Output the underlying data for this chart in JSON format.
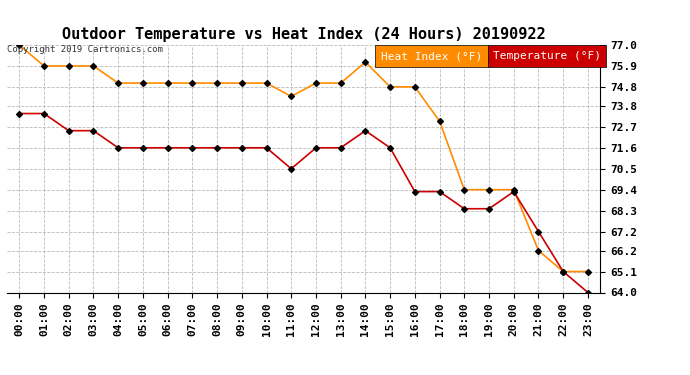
{
  "title": "Outdoor Temperature vs Heat Index (24 Hours) 20190922",
  "copyright": "Copyright 2019 Cartronics.com",
  "background_color": "#ffffff",
  "plot_bg_color": "#ffffff",
  "grid_color": "#aaaaaa",
  "hours": [
    "00:00",
    "01:00",
    "02:00",
    "03:00",
    "04:00",
    "05:00",
    "06:00",
    "07:00",
    "08:00",
    "09:00",
    "10:00",
    "11:00",
    "12:00",
    "13:00",
    "14:00",
    "15:00",
    "16:00",
    "17:00",
    "18:00",
    "19:00",
    "20:00",
    "21:00",
    "22:00",
    "23:00"
  ],
  "heat_index": [
    77.0,
    75.9,
    75.9,
    75.9,
    75.0,
    75.0,
    75.0,
    75.0,
    75.0,
    75.0,
    75.0,
    74.3,
    75.0,
    75.0,
    76.1,
    74.8,
    74.8,
    73.0,
    69.4,
    69.4,
    69.4,
    66.2,
    65.1,
    65.1
  ],
  "temperature": [
    73.4,
    73.4,
    72.5,
    72.5,
    71.6,
    71.6,
    71.6,
    71.6,
    71.6,
    71.6,
    71.6,
    70.5,
    71.6,
    71.6,
    72.5,
    71.6,
    69.3,
    69.3,
    68.4,
    68.4,
    69.3,
    67.2,
    65.1,
    64.0
  ],
  "heat_index_color": "#ff8c00",
  "temperature_color": "#cc0000",
  "marker_color": "#000000",
  "ylim_min": 64.0,
  "ylim_max": 77.0,
  "yticks": [
    64.0,
    65.1,
    66.2,
    67.2,
    68.3,
    69.4,
    70.5,
    71.6,
    72.7,
    73.8,
    74.8,
    75.9,
    77.0
  ],
  "heat_index_color_legend": "#ff8c00",
  "temperature_color_legend": "#cc0000",
  "title_fontsize": 11,
  "tick_fontsize": 8,
  "legend_fontsize": 8
}
